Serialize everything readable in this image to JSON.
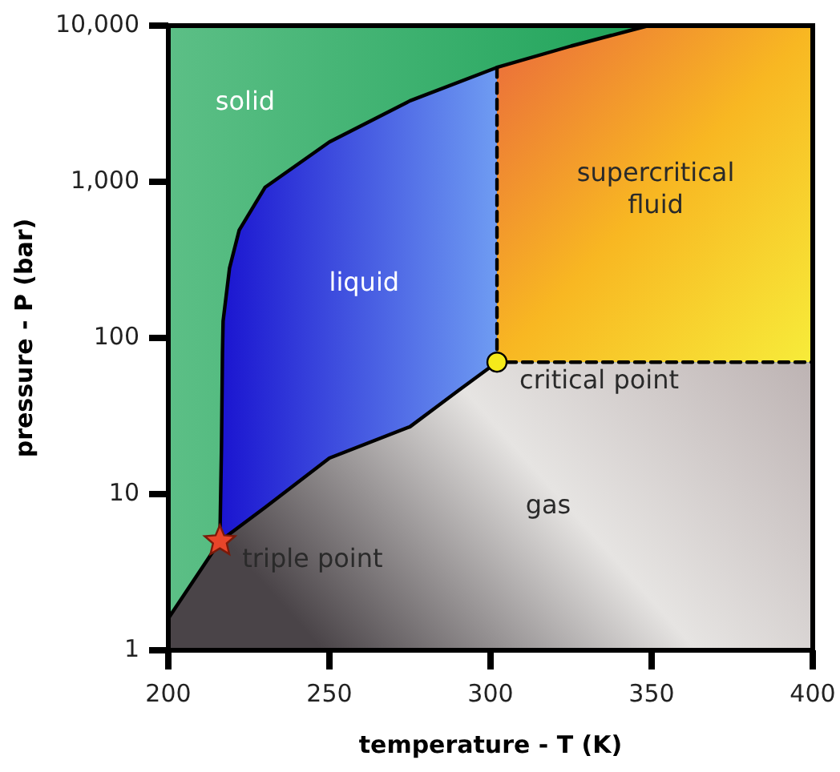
{
  "chart_data": {
    "type": "line",
    "xlabel": "temperature - T (K)",
    "ylabel": "pressure - P (bar)",
    "log": "y",
    "xlim": [
      200,
      400
    ],
    "xticks": [
      200,
      250,
      300,
      350,
      400
    ],
    "ylim": [
      1,
      10000
    ],
    "yticks": [
      1,
      10,
      100,
      {
        "value": 1000,
        "label": "1,000"
      },
      {
        "value": 10000,
        "label": "10,000"
      }
    ],
    "grid": false,
    "legend": false,
    "series": [
      {
        "color": "#000000",
        "line_style": "solid",
        "x": [
          200,
          216,
          230,
          250,
          275,
          290,
          302
        ],
        "values": [
          1.6,
          5,
          8.2,
          17,
          27,
          46,
          70
        ]
      },
      {
        "color": "#000000",
        "line_style": "solid",
        "x": [
          216,
          216.5,
          216.8,
          217,
          219,
          222,
          230,
          250,
          275,
          302,
          325,
          349
        ],
        "values": [
          5,
          20,
          80,
          128,
          280,
          490,
          920,
          1800,
          3300,
          5400,
          7400,
          10000
        ]
      },
      {
        "color": "#000000",
        "line_style": "dashed",
        "x": [
          302,
          302,
          400
        ],
        "values": [
          5400,
          70,
          70
        ]
      },
      {
        "type": "scatter",
        "name": "triple point",
        "color": "#e8452a",
        "marker": "star",
        "x": [
          216
        ],
        "values": [
          5
        ]
      },
      {
        "type": "scatter",
        "name": "critical point",
        "color": "#f5ea1a",
        "marker": "circle",
        "x": [
          302
        ],
        "values": [
          70
        ]
      }
    ],
    "annotations": [
      "solid",
      "liquid",
      "supercritical fluid",
      "gas"
    ]
  }
}
